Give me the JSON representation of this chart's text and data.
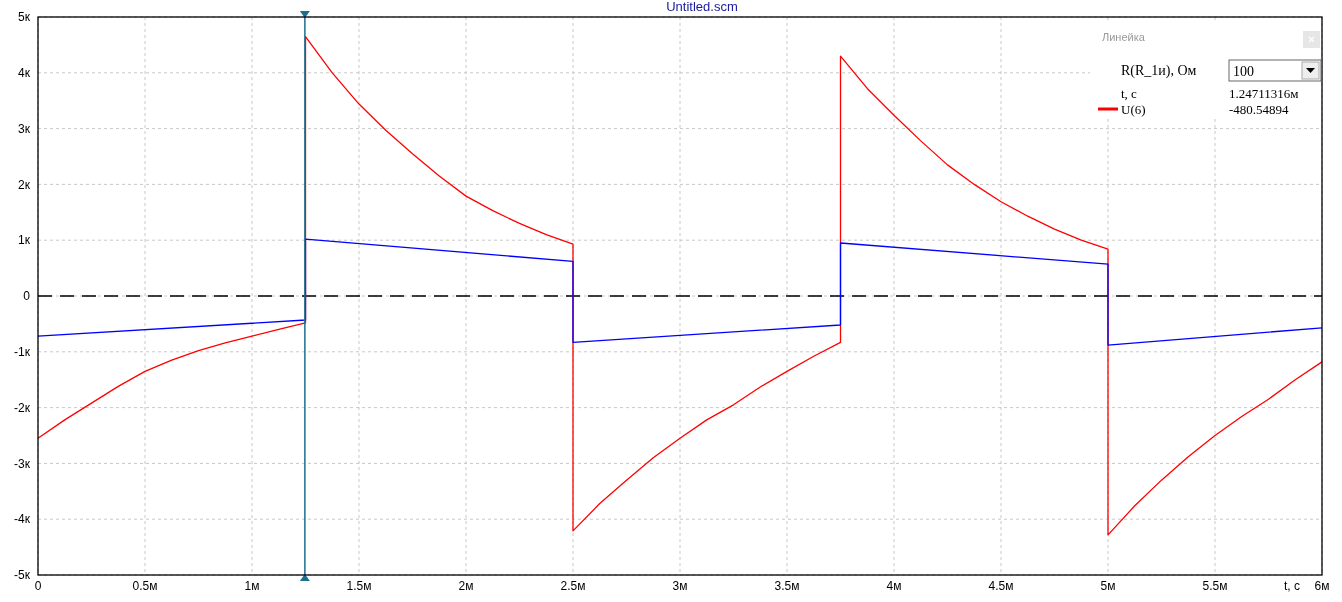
{
  "chart_data": {
    "type": "line",
    "title": "Untitled.scm",
    "xlabel": "t, с",
    "xlim": [
      0,
      6
    ],
    "ylim": [
      -5,
      5
    ],
    "xticks": [
      0,
      {
        "value": 0.5,
        "label": "0.5м"
      },
      {
        "value": 1,
        "label": "1м"
      },
      {
        "value": 1.5,
        "label": "1.5м"
      },
      {
        "value": 2,
        "label": "2м"
      },
      {
        "value": 2.5,
        "label": "2.5м"
      },
      {
        "value": 3,
        "label": "3м"
      },
      {
        "value": 3.5,
        "label": "3.5м"
      },
      {
        "value": 4,
        "label": "4м"
      },
      {
        "value": 4.5,
        "label": "4.5м"
      },
      {
        "value": 5,
        "label": "5м"
      },
      {
        "value": 5.5,
        "label": "5.5м"
      },
      {
        "value": 6,
        "label": "6м"
      }
    ],
    "yticks": [
      {
        "value": 5,
        "label": "5к"
      },
      {
        "value": 4,
        "label": "4к"
      },
      {
        "value": 3,
        "label": "3к"
      },
      {
        "value": 2,
        "label": "2к"
      },
      {
        "value": 1,
        "label": "1к"
      },
      0,
      {
        "value": -1,
        "label": "-1к"
      },
      {
        "value": -2,
        "label": "-2к"
      },
      {
        "value": -3,
        "label": "-3к"
      },
      {
        "value": -4,
        "label": "-4к"
      },
      {
        "value": -5,
        "label": "-5к"
      }
    ],
    "grid": true,
    "legend": "top right",
    "marker": "none",
    "line_style": "solid",
    "series": [
      {
        "name": "U(6)",
        "color": "#ff0000",
        "x": [
          0,
          0.125,
          0.25,
          0.375,
          0.5,
          0.625,
          0.75,
          0.875,
          1,
          1.125,
          1.25,
          1.25,
          1.375,
          1.5,
          1.625,
          1.75,
          1.875,
          2,
          2.125,
          2.25,
          2.375,
          2.5,
          2.5,
          2.625,
          2.75,
          2.875,
          3,
          3.125,
          3.25,
          3.375,
          3.5,
          3.625,
          3.75,
          3.75,
          3.875,
          4,
          4.125,
          4.25,
          4.375,
          4.5,
          4.625,
          4.75,
          4.875,
          5,
          5,
          5.125,
          5.25,
          5.375,
          5.5,
          5.625,
          5.75,
          5.875,
          6
        ],
        "values": [
          -2.55,
          -2.22,
          -1.92,
          -1.62,
          -1.35,
          -1.15,
          -0.98,
          -0.84,
          -0.72,
          -0.6,
          -0.48,
          4.65,
          4.0,
          3.44,
          2.97,
          2.55,
          2.15,
          1.79,
          1.53,
          1.3,
          1.1,
          0.93,
          -4.21,
          -3.72,
          -3.3,
          -2.9,
          -2.55,
          -2.22,
          -1.95,
          -1.63,
          -1.35,
          -1.08,
          -0.83,
          4.3,
          3.72,
          3.24,
          2.78,
          2.35,
          2.0,
          1.69,
          1.43,
          1.2,
          1.0,
          0.84,
          -4.28,
          -3.76,
          -3.3,
          -2.88,
          -2.5,
          -2.16,
          -1.85,
          -1.5,
          -1.18
        ]
      },
      {
        "color": "#0000ff",
        "x": [
          0,
          1.25,
          1.25,
          2.5,
          2.5,
          3.75,
          3.75,
          5,
          5,
          6
        ],
        "values": [
          -0.72,
          -0.43,
          1.02,
          0.62,
          -0.83,
          -0.52,
          0.95,
          0.57,
          -0.88,
          -0.57
        ]
      }
    ],
    "ref_lines": [
      {
        "axis": "y",
        "value": 0,
        "color": "#000000",
        "line_style": "dashed"
      },
      {
        "axis": "x",
        "value": 1.24711316,
        "color": "#1c6f8c",
        "line_style": "solid"
      }
    ],
    "annotations": [
      "Линейка",
      "R(R_1и), Ом",
      "100",
      "t, с",
      "1.24711316м",
      "-480.54894"
    ]
  }
}
